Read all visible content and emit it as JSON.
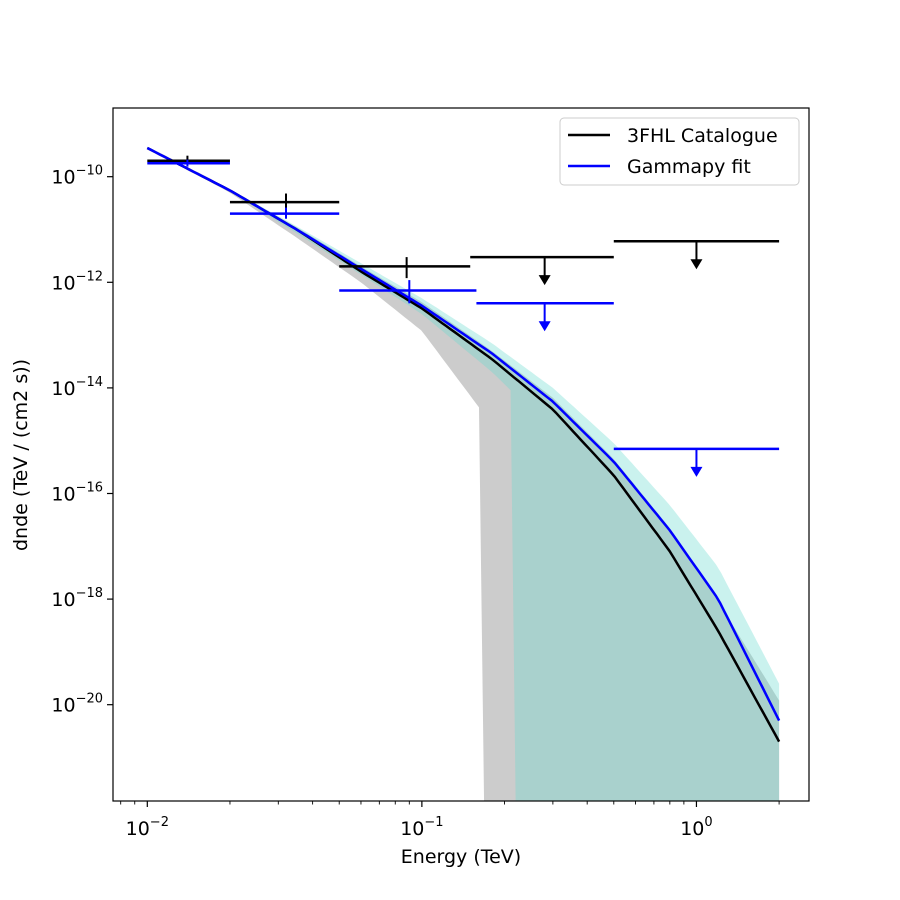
{
  "chart_data": {
    "type": "line",
    "xlabel": "Energy (TeV)",
    "ylabel": "dnde (TeV / (cm2 s))",
    "xscale": "log",
    "yscale": "log",
    "xlim": [
      0.0075,
      2.57
    ],
    "ylim": [
      1.5e-22,
      2e-09
    ],
    "xticks": [
      {
        "base": "10",
        "exp": "−2",
        "value": 0.01
      },
      {
        "base": "10",
        "exp": "−1",
        "value": 0.1
      },
      {
        "base": "10",
        "exp": "0",
        "value": 1
      }
    ],
    "yticks": [
      {
        "base": "10",
        "exp": "−10",
        "value": 1e-10
      },
      {
        "base": "10",
        "exp": "−12",
        "value": 1e-12
      },
      {
        "base": "10",
        "exp": "−14",
        "value": 1e-14
      },
      {
        "base": "10",
        "exp": "−16",
        "value": 1e-16
      },
      {
        "base": "10",
        "exp": "−18",
        "value": 1e-18
      },
      {
        "base": "10",
        "exp": "−20",
        "value": 1e-20
      }
    ],
    "grid": false,
    "legend_position": "top-right",
    "series": [
      {
        "name": "3FHL Catalogue",
        "color": "#000000",
        "band_color": "#cccccc",
        "line": {
          "x": [
            0.01,
            0.02,
            0.035,
            0.06,
            0.1,
            0.18,
            0.3,
            0.5,
            0.8,
            1.2,
            2.0
          ],
          "y": [
            3.5e-10,
            5.5e-11,
            1e-11,
            1.6e-12,
            3.2e-13,
            3.5e-14,
            3.9e-15,
            2.2e-16,
            8e-18,
            2.5e-19,
            2e-21
          ]
        },
        "band_upper": [
          3.6e-10,
          5.8e-11,
          1.1e-11,
          2e-12,
          4.2e-13,
          5e-14,
          6.5e-15,
          4.5e-16,
          2.2e-17,
          9e-19,
          1.2e-20
        ],
        "band_lower": [
          3.4e-10,
          5e-11,
          7e-12,
          1e-12,
          1.2e-13,
          2e-15,
          null,
          null,
          null,
          null,
          null
        ],
        "band_lower_cutoff": 0.165,
        "points": [
          {
            "x": 0.014,
            "y": 2e-10,
            "xmin": 0.01,
            "xmax": 0.02,
            "ymin": 1.7e-10,
            "ymax": 2.5e-10,
            "ul": false
          },
          {
            "x": 0.032,
            "y": 3.3e-11,
            "xmin": 0.02,
            "xmax": 0.05,
            "ymin": 2.2e-11,
            "ymax": 4.8e-11,
            "ul": false
          },
          {
            "x": 0.088,
            "y": 2e-12,
            "xmin": 0.05,
            "xmax": 0.15,
            "ymin": 1.2e-12,
            "ymax": 3e-12,
            "ul": false
          },
          {
            "x": 0.28,
            "y": 3e-12,
            "xmin": 0.15,
            "xmax": 0.5,
            "ul": true
          },
          {
            "x": 1.0,
            "y": 6e-12,
            "xmin": 0.5,
            "xmax": 2.0,
            "ul": true
          }
        ]
      },
      {
        "name": "Gammapy fit",
        "color": "#0000ff",
        "band_color": "#66d9cf",
        "line": {
          "x": [
            0.01,
            0.02,
            0.035,
            0.06,
            0.1,
            0.18,
            0.3,
            0.5,
            0.8,
            1.2,
            2.0
          ],
          "y": [
            3.5e-10,
            5.5e-11,
            1e-11,
            1.8e-12,
            3.6e-13,
            4.5e-14,
            5.5e-15,
            4e-16,
            2e-17,
            1e-18,
            5e-21
          ]
        },
        "band_upper": [
          3.6e-10,
          5.8e-11,
          1.15e-11,
          2.3e-12,
          5e-13,
          7e-14,
          1e-14,
          9e-16,
          6e-17,
          4e-18,
          2.5e-20
        ],
        "band_lower": [
          3.4e-10,
          5.2e-11,
          8.5e-12,
          1.4e-12,
          2.5e-13,
          2e-14,
          1.5e-15,
          3.5e-17,
          null,
          null,
          null
        ],
        "band_lower_cutoff": 0.215,
        "points": [
          {
            "x": 0.014,
            "y": 1.8e-10,
            "xmin": 0.01,
            "xmax": 0.02,
            "ymin": 1.55e-10,
            "ymax": 2.1e-10,
            "ul": false
          },
          {
            "x": 0.032,
            "y": 2e-11,
            "xmin": 0.02,
            "xmax": 0.05,
            "ymin": 1.6e-11,
            "ymax": 2.6e-11,
            "ul": false
          },
          {
            "x": 0.09,
            "y": 7e-13,
            "xmin": 0.05,
            "xmax": 0.158,
            "ymin": 4e-13,
            "ymax": 1.1e-12,
            "ul": false
          },
          {
            "x": 0.28,
            "y": 4e-13,
            "xmin": 0.158,
            "xmax": 0.5,
            "ul": true
          },
          {
            "x": 1.0,
            "y": 7e-16,
            "xmin": 0.5,
            "xmax": 2.0,
            "ul": true
          }
        ]
      }
    ]
  }
}
